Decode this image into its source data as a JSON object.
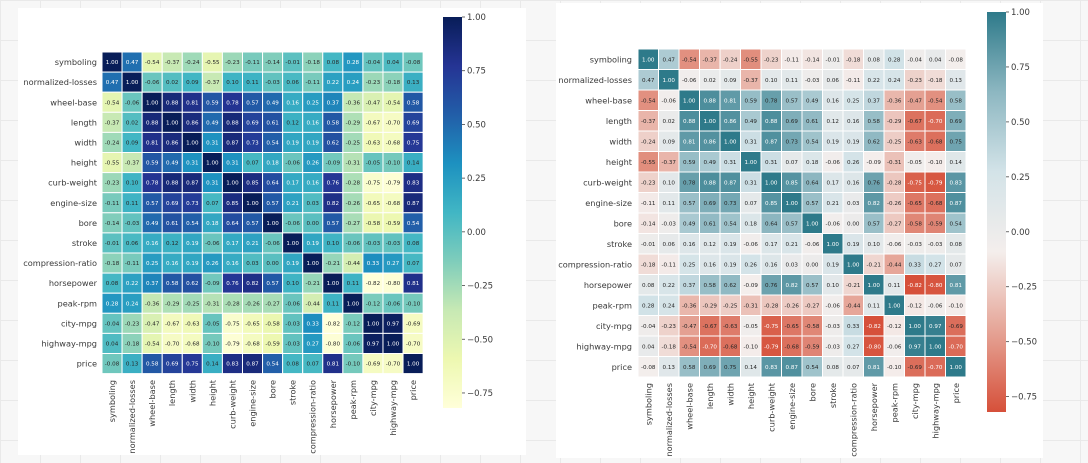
{
  "chart_data": [
    {
      "type": "heatmap",
      "title": "",
      "colormap": "YlGnBu",
      "colormap_stops": [
        "#ffffd9",
        "#edf8b1",
        "#c7e9b4",
        "#7fcdbb",
        "#41b6c4",
        "#1d91c0",
        "#225ea8",
        "#253494",
        "#081d58"
      ],
      "annotated": true,
      "vmin": -0.82,
      "vmax": 1.0,
      "colorbar_ticks": [
        "1.00",
        "0.75",
        "0.50",
        "0.25",
        "0.00",
        "−0.25",
        "−0.50",
        "−0.75"
      ],
      "colorbar_tick_values": [
        1.0,
        0.75,
        0.5,
        0.25,
        0.0,
        -0.25,
        -0.5,
        -0.75
      ],
      "matrix_ref": "matrix"
    },
    {
      "type": "heatmap",
      "title": "",
      "colormap": "diverging red-white-teal",
      "colormap_stops": [
        "#d6503a",
        "#e5a395",
        "#f4eeec",
        "#d3e3e8",
        "#8db7c1",
        "#2e7a8a"
      ],
      "annotated": true,
      "vmin": -0.82,
      "vmax": 1.0,
      "colorbar_ticks": [
        "1.00",
        "0.75",
        "0.50",
        "0.25",
        "0.00",
        "−0.25",
        "−0.50",
        "−0.75"
      ],
      "colorbar_tick_values": [
        1.0,
        0.75,
        0.5,
        0.25,
        0.0,
        -0.25,
        -0.5,
        -0.75
      ],
      "matrix_ref": "matrix"
    }
  ],
  "labels": [
    "symboling",
    "normalized-losses",
    "wheel-base",
    "length",
    "width",
    "height",
    "curb-weight",
    "engine-size",
    "bore",
    "stroke",
    "compression-ratio",
    "horsepower",
    "peak-rpm",
    "city-mpg",
    "highway-mpg",
    "price"
  ],
  "matrix": [
    [
      1.0,
      0.47,
      -0.54,
      -0.37,
      -0.24,
      -0.55,
      -0.23,
      -0.11,
      -0.14,
      -0.01,
      -0.18,
      0.08,
      0.28,
      -0.04,
      0.04,
      -0.08
    ],
    [
      0.47,
      1.0,
      -0.06,
      0.02,
      0.09,
      -0.37,
      0.1,
      0.11,
      -0.03,
      0.06,
      -0.11,
      0.22,
      0.24,
      -0.23,
      -0.18,
      0.13
    ],
    [
      -0.54,
      -0.06,
      1.0,
      0.88,
      0.81,
      0.59,
      0.78,
      0.57,
      0.49,
      0.16,
      0.25,
      0.37,
      -0.36,
      -0.47,
      -0.54,
      0.58
    ],
    [
      -0.37,
      0.02,
      0.88,
      1.0,
      0.86,
      0.49,
      0.88,
      0.69,
      0.61,
      0.12,
      0.16,
      0.58,
      -0.29,
      -0.67,
      -0.7,
      0.69
    ],
    [
      -0.24,
      0.09,
      0.81,
      0.86,
      1.0,
      0.31,
      0.87,
      0.73,
      0.54,
      0.19,
      0.19,
      0.62,
      -0.25,
      -0.63,
      -0.68,
      0.75
    ],
    [
      -0.55,
      -0.37,
      0.59,
      0.49,
      0.31,
      1.0,
      0.31,
      0.07,
      0.18,
      -0.06,
      0.26,
      -0.09,
      -0.31,
      -0.05,
      -0.1,
      0.14
    ],
    [
      -0.23,
      0.1,
      0.78,
      0.88,
      0.87,
      0.31,
      1.0,
      0.85,
      0.64,
      0.17,
      0.16,
      0.76,
      -0.28,
      -0.75,
      -0.79,
      0.83
    ],
    [
      -0.11,
      0.11,
      0.57,
      0.69,
      0.73,
      0.07,
      0.85,
      1.0,
      0.57,
      0.21,
      0.03,
      0.82,
      -0.26,
      -0.65,
      -0.68,
      0.87
    ],
    [
      -0.14,
      -0.03,
      0.49,
      0.61,
      0.54,
      0.18,
      0.64,
      0.57,
      1.0,
      -0.06,
      0.0,
      0.57,
      -0.27,
      -0.58,
      -0.59,
      0.54
    ],
    [
      -0.01,
      0.06,
      0.16,
      0.12,
      0.19,
      -0.06,
      0.17,
      0.21,
      -0.06,
      1.0,
      0.19,
      0.1,
      -0.06,
      -0.03,
      -0.03,
      0.08
    ],
    [
      -0.18,
      -0.11,
      0.25,
      0.16,
      0.19,
      0.26,
      0.16,
      0.03,
      0.0,
      0.19,
      1.0,
      -0.21,
      -0.44,
      0.33,
      0.27,
      0.07
    ],
    [
      0.08,
      0.22,
      0.37,
      0.58,
      0.62,
      -0.09,
      0.76,
      0.82,
      0.57,
      0.1,
      -0.21,
      1.0,
      0.11,
      -0.82,
      -0.8,
      0.81
    ],
    [
      0.28,
      0.24,
      -0.36,
      -0.29,
      -0.25,
      -0.31,
      -0.28,
      -0.26,
      -0.27,
      -0.06,
      -0.44,
      0.11,
      1.0,
      -0.12,
      -0.06,
      -0.1
    ],
    [
      -0.04,
      -0.23,
      -0.47,
      -0.67,
      -0.63,
      -0.05,
      -0.75,
      -0.65,
      -0.58,
      -0.03,
      0.33,
      -0.82,
      -0.12,
      1.0,
      0.97,
      -0.69
    ],
    [
      0.04,
      -0.18,
      -0.54,
      -0.7,
      -0.68,
      -0.1,
      -0.79,
      -0.68,
      -0.59,
      -0.03,
      0.27,
      -0.8,
      -0.06,
      0.97,
      1.0,
      -0.7
    ],
    [
      -0.08,
      0.13,
      0.58,
      0.69,
      0.75,
      0.14,
      0.83,
      0.87,
      0.54,
      0.08,
      0.07,
      0.81,
      -0.1,
      -0.69,
      -0.7,
      1.0
    ]
  ]
}
